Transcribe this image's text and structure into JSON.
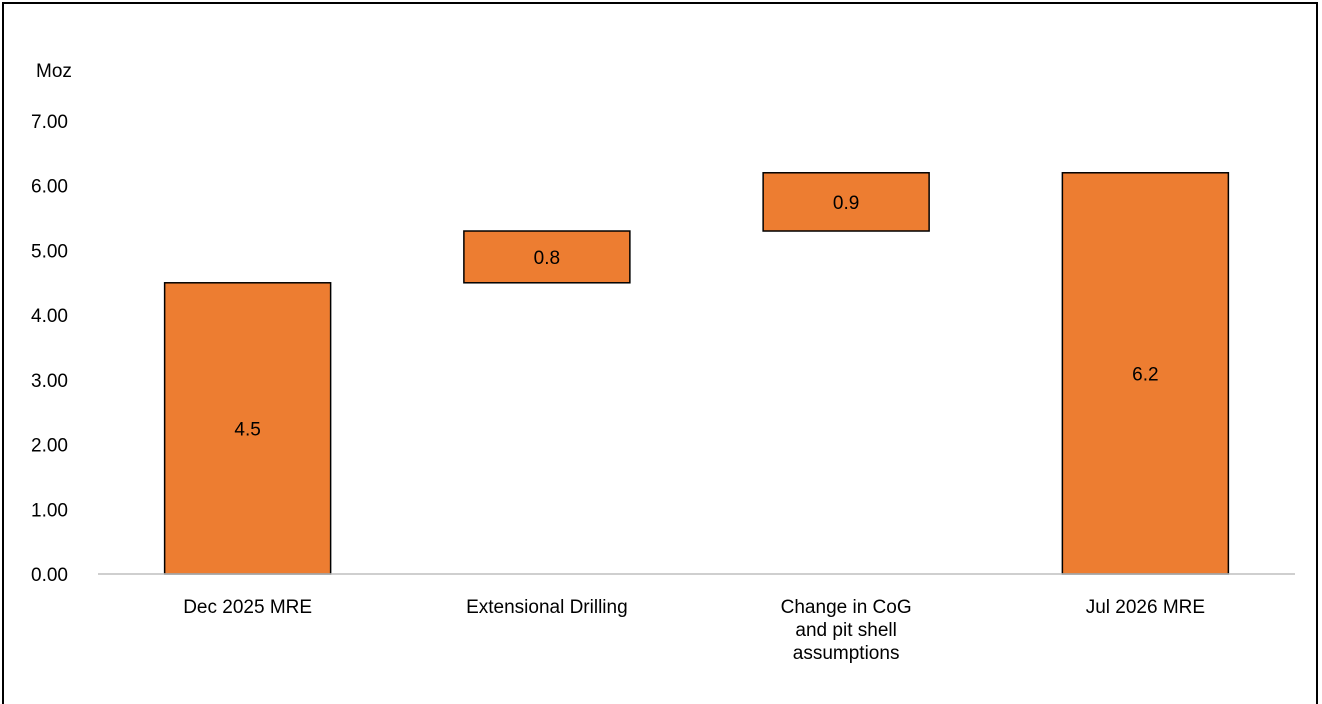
{
  "chart_data": {
    "type": "bar",
    "subtype": "waterfall",
    "ylabel": "Moz",
    "ylim": [
      0,
      7
    ],
    "yticks": [
      "0.00",
      "1.00",
      "2.00",
      "3.00",
      "4.00",
      "5.00",
      "6.00",
      "7.00"
    ],
    "grid": false,
    "legend": "none",
    "bar_color": "#ED7D31",
    "bar_outline": "#000000",
    "categories": [
      [
        "Dec 2025 MRE"
      ],
      [
        "Extensional Drilling"
      ],
      [
        "Change in CoG",
        "and pit shell",
        "assumptions"
      ],
      [
        "Jul 2026 MRE"
      ]
    ],
    "bars": [
      {
        "base": 0,
        "top": 4.5,
        "label": "4.5"
      },
      {
        "base": 4.5,
        "top": 5.3,
        "label": "0.8"
      },
      {
        "base": 5.3,
        "top": 6.2,
        "label": "0.9"
      },
      {
        "base": 0,
        "top": 6.2,
        "label": "6.2"
      }
    ]
  }
}
